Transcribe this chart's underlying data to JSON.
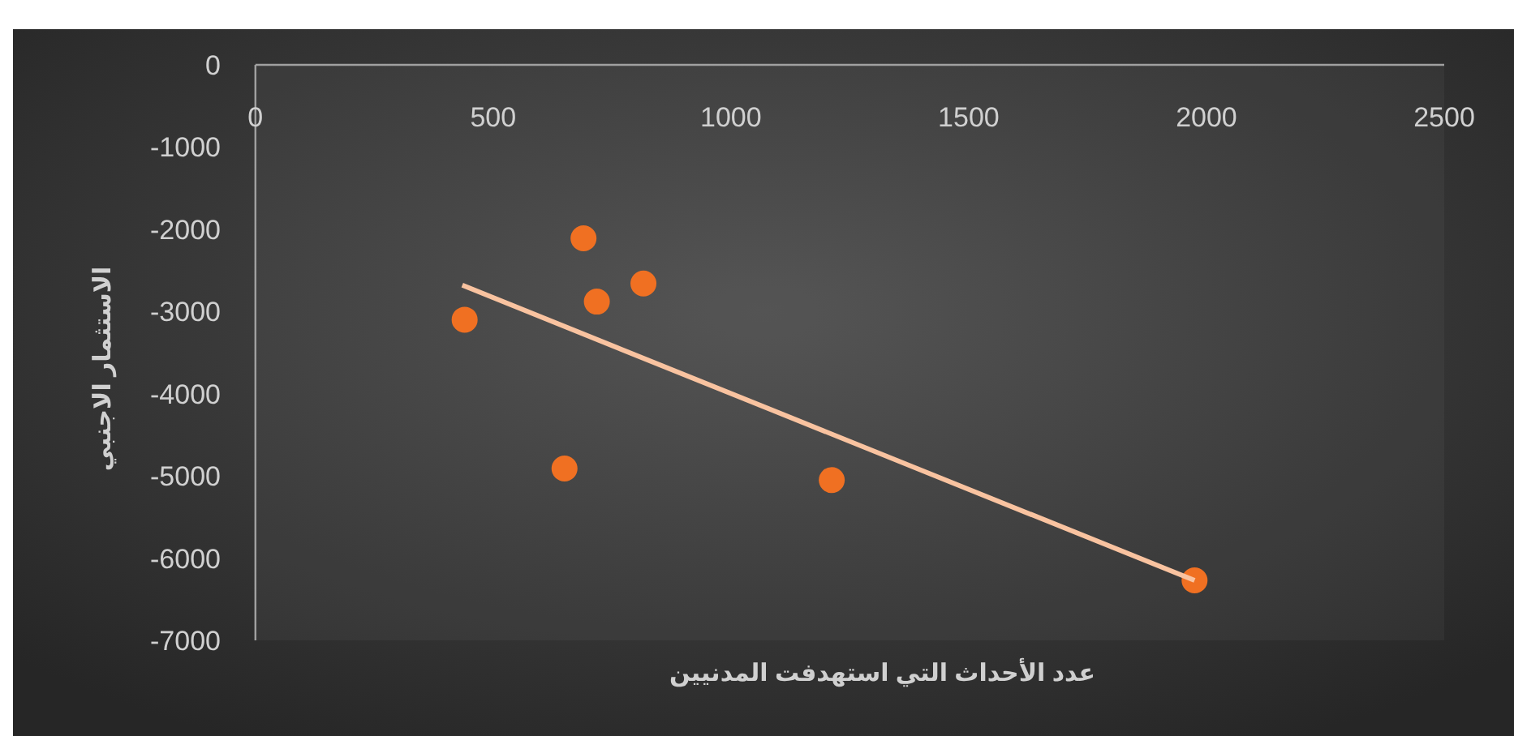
{
  "chart_data": {
    "type": "scatter",
    "xlabel": "عدد الأحداث التي استهدفت المدنيين",
    "ylabel": "الاستثمار الاجنبي",
    "xlim": [
      0,
      2500
    ],
    "xticks": [
      0,
      500,
      1000,
      1500,
      2000,
      2500
    ],
    "ylim": [
      -7000,
      0
    ],
    "yticks": [
      -7000,
      -6000,
      -5000,
      -4000,
      -3000,
      -2000,
      -1000,
      0
    ],
    "grid": false,
    "series": [
      {
        "type": "scatter",
        "marker": "circle",
        "color": "#f07022",
        "x": [
          440,
          690,
          718,
          816,
          650,
          1212,
          1975
        ],
        "values": [
          -3100,
          -2110,
          -2880,
          -2660,
          -4910,
          -5050,
          -6270
        ]
      },
      {
        "type": "line",
        "color": "#f9c3a0",
        "x": [
          435,
          1975
        ],
        "values": [
          -2680,
          -6270
        ]
      }
    ]
  }
}
